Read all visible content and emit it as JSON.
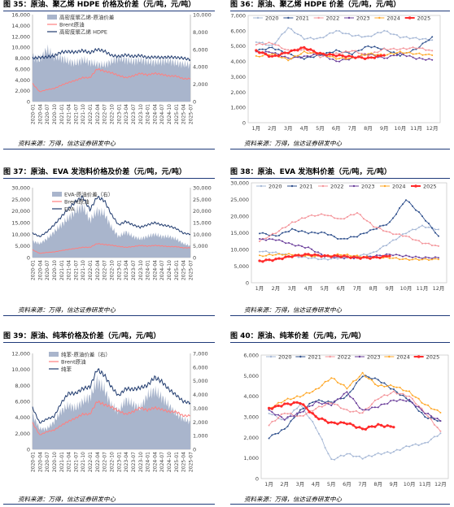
{
  "colors": {
    "brent": "#ff7f7f",
    "line_dark": "#1f3a6e",
    "area": "#a9b5cc",
    "y2020": "#a6b8d6",
    "y2021": "#2e4f8c",
    "y2022": "#f4949a",
    "y2023": "#6a3d9a",
    "y2024": "#ffa726",
    "y2025": "#ff2b2b"
  },
  "source_text": "资料来源：万得，信达证券研发中心",
  "panels": {
    "p35": {
      "title": "图 35：原油、聚乙烯 HDPE 价格及价差（元/吨，元/吨）"
    },
    "p36": {
      "title": "图 36：原油、聚乙烯 HDPE 价差（元/吨，元/吨）"
    },
    "p37": {
      "title": "图 37：原油、EVA 发泡料价格及价差（元/吨，元/吨）"
    },
    "p38": {
      "title": "图 38：原油、EVA 发泡料价差（元/吨，元/吨）"
    },
    "p39": {
      "title": "图 39：原油、纯苯价格及价差（元/吨，元/吨）"
    },
    "p40": {
      "title": "图 40：原油、纯苯价差（元/吨，元/吨）"
    }
  },
  "chart_data": [
    {
      "id": "c35",
      "type": "area",
      "legend": [
        "高密度聚乙烯-原油价差",
        "Brent原油",
        "高密度聚乙烯 HDPE"
      ],
      "y_left": {
        "min": 0,
        "max": 16000,
        "ticks": [
          "0",
          "2,000",
          "4,000",
          "6,000",
          "8,000",
          "10,000",
          "12,000",
          "14,000",
          "16,000"
        ]
      },
      "y_right": {
        "min": 0,
        "max": 10000,
        "ticks": [
          "0",
          "2,000",
          "4,000",
          "6,000",
          "8,000",
          "10,000"
        ]
      },
      "x_ticks": [
        "2020-01",
        "2020-04",
        "2020-07",
        "2020-10",
        "2021-01",
        "2021-04",
        "2021-07",
        "2021-10",
        "2022-01",
        "2022-04",
        "2022-07",
        "2022-10",
        "2023-01",
        "2023-04",
        "2023-07",
        "2023-10",
        "2024-01",
        "2024-04",
        "2024-07",
        "2024-10",
        "2025-01",
        "2025-04",
        "2025-07"
      ],
      "series": [
        {
          "name": "高密度聚乙烯-原油价差",
          "axis": "right",
          "values": [
            5200,
            4800,
            6000,
            5200,
            5000,
            4600,
            4400,
            4800,
            4500,
            4300,
            4200,
            4600,
            5000,
            4800,
            4600,
            4800,
            4600,
            4500,
            4600,
            4700,
            4400,
            4300,
            4200
          ]
        },
        {
          "name": "Brent原油",
          "axis": "left",
          "values": [
            3300,
            1800,
            2200,
            2400,
            3000,
            3500,
            3900,
            4400,
            4400,
            6000,
            5600,
            5300,
            4800,
            4400,
            4700,
            5200,
            4900,
            5200,
            5000,
            4700,
            4700,
            4200,
            4200
          ]
        },
        {
          "name": "高密度聚乙烯 HDPE",
          "axis": "left",
          "values": [
            8000,
            8100,
            8200,
            8400,
            9100,
            9200,
            9100,
            9400,
            9000,
            9600,
            9300,
            8500,
            8300,
            8600,
            8300,
            8500,
            8100,
            8200,
            8100,
            8200,
            8100,
            8000,
            7700
          ]
        }
      ]
    },
    {
      "id": "c36",
      "type": "line",
      "legend": [
        "2020",
        "2021",
        "2022",
        "2023",
        "2024",
        "2025"
      ],
      "y": {
        "min": 0,
        "max": 7000,
        "ticks": [
          "0",
          "1,000",
          "2,000",
          "3,000",
          "4,000",
          "5,000",
          "6,000",
          "7,000"
        ]
      },
      "x_ticks": [
        "1月",
        "2月",
        "3月",
        "4月",
        "5月",
        "6月",
        "7月",
        "8月",
        "9月",
        "10月",
        "11月",
        "12月"
      ],
      "series": [
        {
          "name": "2020",
          "values": [
            5300,
            5000,
            6200,
            5500,
            5500,
            6000,
            5700,
            5600,
            6000,
            5600,
            5500,
            5400
          ]
        },
        {
          "name": "2021",
          "values": [
            4700,
            4900,
            4500,
            4200,
            4400,
            4700,
            4500,
            5000,
            4800,
            4400,
            4800,
            5600
          ]
        },
        {
          "name": "2022",
          "values": [
            5100,
            5200,
            4700,
            4800,
            4300,
            4500,
            4700,
            4400,
            4800,
            4800,
            4900,
            4700
          ]
        },
        {
          "name": "2023",
          "values": [
            4600,
            4600,
            4200,
            4300,
            4500,
            4000,
            4200,
            4500,
            4200,
            4500,
            4200,
            4100
          ]
        },
        {
          "name": "2024",
          "values": [
            4300,
            4500,
            4100,
            4600,
            4500,
            4200,
            4200,
            4500,
            4400,
            4600,
            4500,
            4400
          ]
        },
        {
          "name": "2025",
          "values": [
            4700,
            4300,
            4600,
            4900,
            4500,
            4400,
            4300,
            4200,
            4400
          ]
        }
      ]
    },
    {
      "id": "c37",
      "type": "area",
      "legend": [
        "EVA-原油价差（右）",
        "Brent原油",
        "EVA"
      ],
      "y_left": {
        "min": 0,
        "max": 30000,
        "ticks": [
          "0",
          "5,000",
          "10,000",
          "15,000",
          "20,000",
          "25,000",
          "30,000"
        ]
      },
      "y_right": {
        "min": 0,
        "max": 30000,
        "ticks": [
          "0",
          "5,000",
          "10,000",
          "15,000",
          "20,000",
          "25,000",
          "30,000"
        ]
      },
      "x_ticks": [
        "2020-01",
        "2020-04",
        "2020-07",
        "2020-10",
        "2021-01",
        "2021-04",
        "2021-07",
        "2021-10",
        "2022-01",
        "2022-04",
        "2022-07",
        "2022-10",
        "2023-01",
        "2023-04",
        "2023-07",
        "2023-10",
        "2024-01",
        "2024-04",
        "2024-07",
        "2024-10",
        "2025-01",
        "2025-04",
        "2025-07"
      ],
      "series": [
        {
          "name": "EVA-原油价差（右）",
          "axis": "right",
          "values": [
            7000,
            6000,
            8000,
            11000,
            14000,
            17000,
            20000,
            22000,
            16000,
            20000,
            19000,
            13000,
            9000,
            11000,
            9000,
            8000,
            9000,
            10000,
            9000,
            9000,
            8000,
            6000,
            5000
          ]
        },
        {
          "name": "Brent原油",
          "axis": "left",
          "values": [
            3300,
            1800,
            2200,
            2400,
            3000,
            3500,
            3900,
            4400,
            4400,
            6000,
            5600,
            5300,
            4800,
            4400,
            4700,
            5200,
            4900,
            5200,
            5000,
            4700,
            4700,
            4200,
            4200
          ]
        },
        {
          "name": "EVA",
          "axis": "left",
          "values": [
            10500,
            9000,
            11000,
            14000,
            17500,
            21000,
            24000,
            26000,
            20500,
            26000,
            24500,
            18500,
            14000,
            15500,
            14000,
            13000,
            14000,
            15000,
            14000,
            13500,
            12500,
            10500,
            10000
          ]
        }
      ]
    },
    {
      "id": "c38",
      "type": "line",
      "legend": [
        "2020",
        "2021",
        "2022",
        "2023",
        "2024",
        "2025"
      ],
      "y": {
        "min": 0,
        "max": 30000,
        "ticks": [
          "0",
          "5,000",
          "10,000",
          "15,000",
          "20,000",
          "25,000",
          "30,000"
        ]
      },
      "x_ticks": [
        "1月",
        "2月",
        "3月",
        "4月",
        "5月",
        "6月",
        "7月",
        "8月",
        "9月",
        "10月",
        "11月",
        "12月"
      ],
      "series": [
        {
          "name": "2020",
          "values": [
            9500,
            9000,
            8000,
            7500,
            7000,
            7500,
            8000,
            9000,
            12000,
            15000,
            17000,
            16000
          ]
        },
        {
          "name": "2021",
          "values": [
            15000,
            14000,
            16000,
            15000,
            15000,
            13000,
            14000,
            16000,
            18000,
            25000,
            20000,
            14000
          ]
        },
        {
          "name": "2022",
          "values": [
            12500,
            15000,
            18000,
            20000,
            20500,
            19000,
            21000,
            17000,
            15000,
            14000,
            12000,
            11000
          ]
        },
        {
          "name": "2023",
          "values": [
            13000,
            13000,
            11500,
            10500,
            8000,
            7500,
            7500,
            8000,
            8500,
            8000,
            7500,
            7500
          ]
        },
        {
          "name": "2024",
          "values": [
            8000,
            8500,
            8500,
            8000,
            8000,
            8500,
            8000,
            7500,
            7500,
            7000,
            7000,
            7000
          ]
        },
        {
          "name": "2025",
          "values": [
            6500,
            7000,
            8000,
            8500,
            8000,
            8000,
            7500,
            7500,
            8000
          ]
        }
      ]
    },
    {
      "id": "c39",
      "type": "area",
      "legend": [
        "纯苯-原油价差（右）",
        "Brent原油",
        "纯苯"
      ],
      "y_left": {
        "min": 0,
        "max": 12000,
        "ticks": [
          "0",
          "2,000",
          "4,000",
          "6,000",
          "8,000",
          "10,000",
          "12,000"
        ]
      },
      "y_right": {
        "min": 0,
        "max": 7000,
        "ticks": [
          "0",
          "1,000",
          "2,000",
          "3,000",
          "4,000",
          "5,000",
          "6,000",
          "7,000"
        ]
      },
      "x_ticks": [
        "2020-01",
        "2020-04",
        "2020-07",
        "2020-10",
        "2021-01",
        "2021-04",
        "2021-07",
        "2021-10",
        "2022-01",
        "2022-04",
        "2022-07",
        "2022-10",
        "2023-01",
        "2023-04",
        "2023-07",
        "2023-10",
        "2024-01",
        "2024-04",
        "2024-07",
        "2024-10",
        "2025-01",
        "2025-04",
        "2025-07"
      ],
      "series": [
        {
          "name": "纯苯-原油价差（右）",
          "axis": "right",
          "values": [
            2500,
            1500,
            1500,
            2000,
            2800,
            3200,
            3000,
            3500,
            3800,
            5000,
            4400,
            3200,
            2800,
            3600,
            3300,
            3000,
            3900,
            4300,
            3800,
            3200,
            2600,
            2200,
            2000
          ]
        },
        {
          "name": "Brent原油",
          "axis": "left",
          "values": [
            3300,
            1800,
            2200,
            2400,
            3000,
            3500,
            3900,
            4400,
            4400,
            6000,
            5600,
            5300,
            4800,
            4400,
            4700,
            5200,
            4900,
            5200,
            5000,
            4700,
            4700,
            4200,
            4200
          ]
        },
        {
          "name": "纯苯",
          "axis": "left",
          "values": [
            5200,
            3300,
            3800,
            4100,
            5800,
            7000,
            7000,
            7600,
            7800,
            10000,
            9300,
            7800,
            6700,
            7600,
            7500,
            7700,
            8000,
            9000,
            8500,
            7500,
            6800,
            6000,
            5800
          ]
        }
      ]
    },
    {
      "id": "c40",
      "type": "line",
      "legend": [
        "2020",
        "2021",
        "2022",
        "2023",
        "2024",
        "2025"
      ],
      "y": {
        "min": 0,
        "max": 6000,
        "ticks": [
          "0",
          "1,000",
          "2,000",
          "3,000",
          "4,000",
          "5,000",
          "6,000"
        ]
      },
      "x_ticks": [
        "1月",
        "2月",
        "3月",
        "4月",
        "5月",
        "6月",
        "7月",
        "8月",
        "9月",
        "10月",
        "11月",
        "12月"
      ],
      "series": [
        {
          "name": "2020",
          "values": [
            3200,
            2800,
            3600,
            2500,
            900,
            1200,
            1000,
            1200,
            1300,
            1600,
            1700,
            2200
          ]
        },
        {
          "name": "2021",
          "values": [
            2000,
            2400,
            3300,
            3800,
            3700,
            4000,
            5000,
            4800,
            4300,
            3800,
            3000,
            2800
          ]
        },
        {
          "name": "2022",
          "values": [
            2600,
            3200,
            3000,
            3400,
            3700,
            3300,
            3200,
            3900,
            4200,
            4000,
            3200,
            2300
          ]
        },
        {
          "name": "2023",
          "values": [
            3300,
            2900,
            3200,
            3700,
            3600,
            4200,
            3300,
            3500,
            3800,
            3800,
            3200,
            2800
          ]
        },
        {
          "name": "2024",
          "values": [
            3400,
            3800,
            4000,
            4300,
            4900,
            4400,
            5100,
            4500,
            4500,
            4200,
            3600,
            3200
          ]
        },
        {
          "name": "2025",
          "values": [
            3400,
            3600,
            3700,
            3000,
            2700,
            2700,
            2400,
            2600,
            2500
          ]
        }
      ]
    }
  ]
}
